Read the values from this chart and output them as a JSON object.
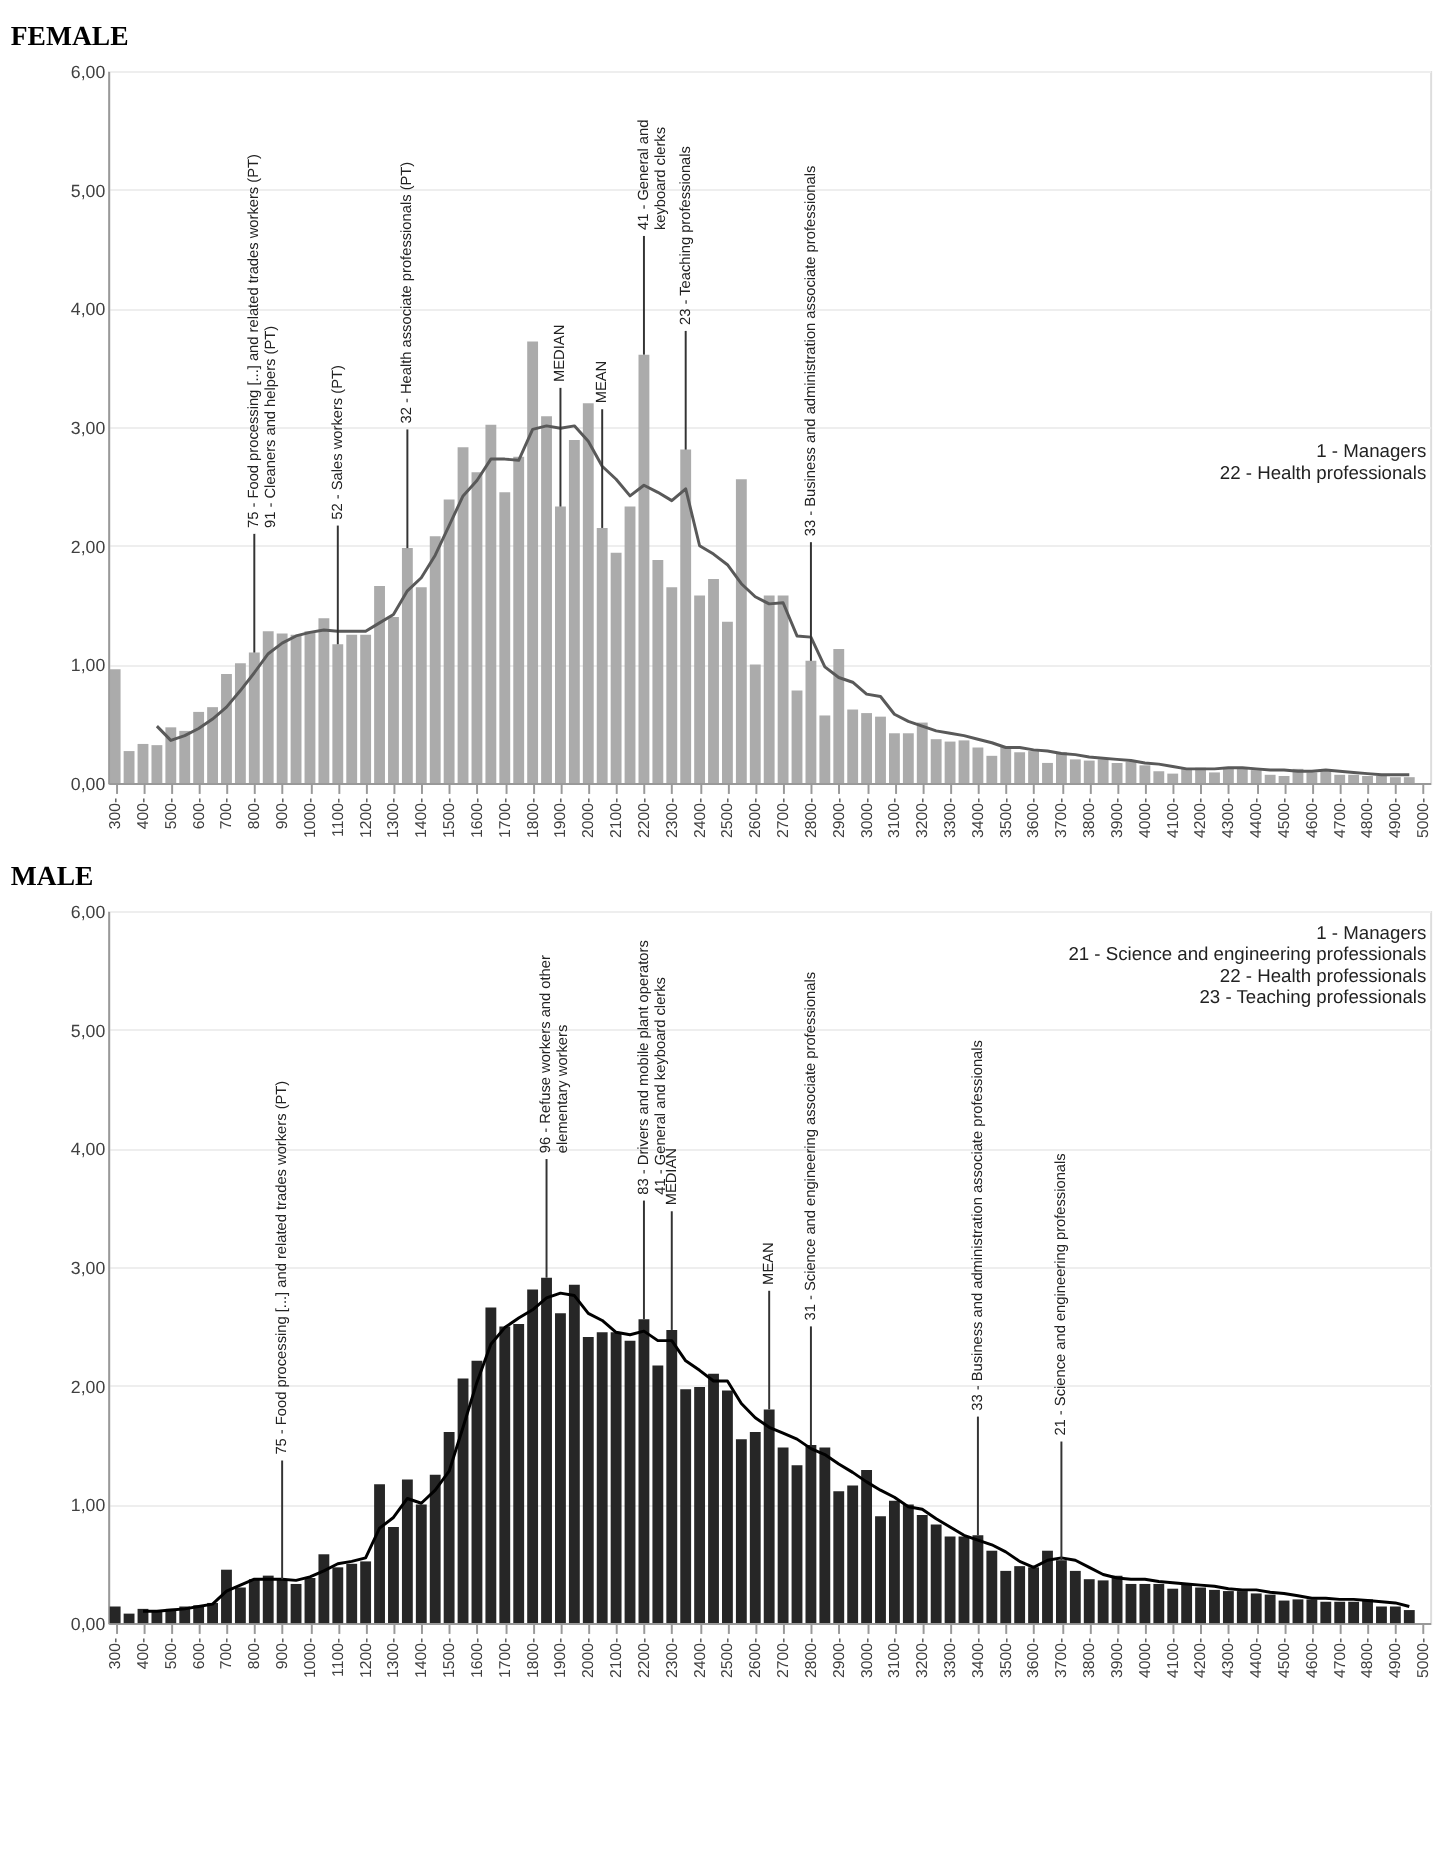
{
  "chart_data": [
    {
      "type": "bar",
      "title": "FEMALE",
      "x": [
        300,
        350,
        400,
        450,
        500,
        550,
        600,
        650,
        700,
        750,
        800,
        850,
        900,
        950,
        1000,
        1050,
        1100,
        1150,
        1200,
        1250,
        1300,
        1350,
        1400,
        1450,
        1500,
        1550,
        1600,
        1650,
        1700,
        1750,
        1800,
        1850,
        1900,
        1950,
        2000,
        2050,
        2100,
        2150,
        2200,
        2250,
        2300,
        2350,
        2400,
        2450,
        2500,
        2550,
        2600,
        2650,
        2700,
        2750,
        2800,
        2850,
        2900,
        2950,
        3000,
        3050,
        3100,
        3150,
        3200,
        3250,
        3300,
        3350,
        3400,
        3450,
        3500,
        3550,
        3600,
        3650,
        3700,
        3750,
        3800,
        3850,
        3900,
        3950,
        4000,
        4050,
        4100,
        4150,
        4200,
        4250,
        4300,
        4350,
        4400,
        4450,
        4500,
        4550,
        4600,
        4650,
        4700,
        4750,
        4800,
        4850,
        4900,
        4950
      ],
      "series": [
        {
          "color": "#a6a6a6",
          "values": [
            0.96,
            0.27,
            0.33,
            0.32,
            0.47,
            0.44,
            0.6,
            0.64,
            0.92,
            1.01,
            1.1,
            1.28,
            1.26,
            1.25,
            1.28,
            1.39,
            1.17,
            1.25,
            1.25,
            1.66,
            1.4,
            1.98,
            1.65,
            2.08,
            2.39,
            2.83,
            2.62,
            3.02,
            2.45,
            2.75,
            3.72,
            3.09,
            2.33,
            2.89,
            3.2,
            2.15,
            1.94,
            2.33,
            3.61,
            1.88,
            1.65,
            2.81,
            1.58,
            1.72,
            1.36,
            2.56,
            1.0,
            1.58,
            1.58,
            0.78,
            1.03,
            0.57,
            1.13,
            0.62,
            0.59,
            0.56,
            0.42,
            0.42,
            0.51,
            0.37,
            0.35,
            0.36,
            0.3,
            0.23,
            0.31,
            0.26,
            0.27,
            0.17,
            0.26,
            0.2,
            0.19,
            0.2,
            0.17,
            0.18,
            0.15,
            0.1,
            0.08,
            0.12,
            0.13,
            0.09,
            0.12,
            0.12,
            0.11,
            0.07,
            0.06,
            0.12,
            0.09,
            0.1,
            0.07,
            0.07,
            0.06,
            0.06,
            0.05,
            0.05
          ]
        },
        {
          "type": "line",
          "color": "#595959",
          "values": [
            null,
            null,
            null,
            0.48,
            0.36,
            0.4,
            0.46,
            0.54,
            0.64,
            0.78,
            0.93,
            1.09,
            1.18,
            1.24,
            1.27,
            1.29,
            1.28,
            1.28,
            1.28,
            1.35,
            1.42,
            1.62,
            1.73,
            1.92,
            2.17,
            2.42,
            2.55,
            2.73,
            2.73,
            2.72,
            2.98,
            3.01,
            2.99,
            3.01,
            2.88,
            2.67,
            2.56,
            2.42,
            2.51,
            2.45,
            2.38,
            2.48,
            2.0,
            1.93,
            1.84,
            1.68,
            1.57,
            1.51,
            1.52,
            1.24,
            1.23,
            0.98,
            0.89,
            0.85,
            0.75,
            0.73,
            0.58,
            0.52,
            0.48,
            0.44,
            0.42,
            0.4,
            0.37,
            0.34,
            0.3,
            0.3,
            0.28,
            0.27,
            0.25,
            0.24,
            0.22,
            0.21,
            0.2,
            0.19,
            0.17,
            0.16,
            0.14,
            0.12,
            0.12,
            0.12,
            0.13,
            0.13,
            0.12,
            0.11,
            0.11,
            0.1,
            0.1,
            0.11,
            0.1,
            0.09,
            0.08,
            0.07,
            0.07,
            0.07
          ]
        }
      ],
      "xlim": [
        275,
        5025
      ],
      "xticks": [
        {
          "value": 300,
          "label": "300-"
        },
        {
          "value": 400,
          "label": "400-"
        },
        {
          "value": 500,
          "label": "500-"
        },
        {
          "value": 600,
          "label": "600-"
        },
        {
          "value": 700,
          "label": "700-"
        },
        {
          "value": 800,
          "label": "800-"
        },
        {
          "value": 900,
          "label": "900-"
        },
        {
          "value": 1000,
          "label": "1000-"
        },
        {
          "value": 1100,
          "label": "1100-"
        },
        {
          "value": 1200,
          "label": "1200-"
        },
        {
          "value": 1300,
          "label": "1300-"
        },
        {
          "value": 1400,
          "label": "1400-"
        },
        {
          "value": 1500,
          "label": "1500-"
        },
        {
          "value": 1600,
          "label": "1600-"
        },
        {
          "value": 1700,
          "label": "1700-"
        },
        {
          "value": 1800,
          "label": "1800-"
        },
        {
          "value": 1900,
          "label": "1900-"
        },
        {
          "value": 2000,
          "label": "2000-"
        },
        {
          "value": 2100,
          "label": "2100-"
        },
        {
          "value": 2200,
          "label": "2200-"
        },
        {
          "value": 2300,
          "label": "2300-"
        },
        {
          "value": 2400,
          "label": "2400-"
        },
        {
          "value": 2500,
          "label": "2500-"
        },
        {
          "value": 2600,
          "label": "2600-"
        },
        {
          "value": 2700,
          "label": "2700-"
        },
        {
          "value": 2800,
          "label": "2800-"
        },
        {
          "value": 2900,
          "label": "2900-"
        },
        {
          "value": 3000,
          "label": "3000-"
        },
        {
          "value": 3100,
          "label": "3100-"
        },
        {
          "value": 3200,
          "label": "3200-"
        },
        {
          "value": 3300,
          "label": "3300-"
        },
        {
          "value": 3400,
          "label": "3400-"
        },
        {
          "value": 3500,
          "label": "3500-"
        },
        {
          "value": 3600,
          "label": "3600-"
        },
        {
          "value": 3700,
          "label": "3700-"
        },
        {
          "value": 3800,
          "label": "3800-"
        },
        {
          "value": 3900,
          "label": "3900-"
        },
        {
          "value": 4000,
          "label": "4000-"
        },
        {
          "value": 4100,
          "label": "4100-"
        },
        {
          "value": 4200,
          "label": "4200-"
        },
        {
          "value": 4300,
          "label": "4300-"
        },
        {
          "value": 4400,
          "label": "4400-"
        },
        {
          "value": 4500,
          "label": "4500-"
        },
        {
          "value": 4600,
          "label": "4600-"
        },
        {
          "value": 4700,
          "label": "4700-"
        },
        {
          "value": 4800,
          "label": "4800-"
        },
        {
          "value": 4900,
          "label": "4900-"
        },
        {
          "value": 5000,
          "label": "5000-"
        }
      ],
      "ylim": [
        0,
        6
      ],
      "yticks": [
        {
          "value": 0,
          "label": "0,00"
        },
        {
          "value": 1,
          "label": "1,00"
        },
        {
          "value": 2,
          "label": "2,00"
        },
        {
          "value": 3,
          "label": "3,00"
        },
        {
          "value": 4,
          "label": "4,00"
        },
        {
          "value": 5,
          "label": "5,00"
        },
        {
          "value": 6,
          "label": "6,00"
        }
      ],
      "grid": "y",
      "annotations": [
        {
          "text": "75 - Food processing [...] and related trades workers (PT)\n91 - Cleaners and helpers (PT)",
          "x": 800,
          "y": 1.1
        },
        {
          "text": "52 - Sales workers (PT)",
          "x": 1100,
          "y": 1.17
        },
        {
          "text": "32 - Health associate professionals (PT)",
          "x": 1350,
          "y": 1.98
        },
        {
          "text": "MEDIAN",
          "x": 1900,
          "y": 2.33
        },
        {
          "text": "MEAN",
          "x": 2050,
          "y": 2.15
        },
        {
          "text": "41 - General and\nkeyboard clerks",
          "x": 2200,
          "y": 3.61
        },
        {
          "text": "23 - Teaching professionals",
          "x": 2350,
          "y": 2.81
        },
        {
          "text": "33 - Business and administration associate professionals",
          "x": 2800,
          "y": 1.03
        },
        "1   - Managers\n22 - Health professionals"
      ]
    },
    {
      "type": "bar",
      "title": "MALE",
      "x": [
        300,
        350,
        400,
        450,
        500,
        550,
        600,
        650,
        700,
        750,
        800,
        850,
        900,
        950,
        1000,
        1050,
        1100,
        1150,
        1200,
        1250,
        1300,
        1350,
        1400,
        1450,
        1500,
        1550,
        1600,
        1650,
        1700,
        1750,
        1800,
        1850,
        1900,
        1950,
        2000,
        2050,
        2100,
        2150,
        2200,
        2250,
        2300,
        2350,
        2400,
        2450,
        2500,
        2550,
        2600,
        2650,
        2700,
        2750,
        2800,
        2850,
        2900,
        2950,
        3000,
        3050,
        3100,
        3150,
        3200,
        3250,
        3300,
        3350,
        3400,
        3450,
        3500,
        3550,
        3600,
        3650,
        3700,
        3750,
        3800,
        3850,
        3900,
        3950,
        4000,
        4050,
        4100,
        4150,
        4200,
        4250,
        4300,
        4350,
        4400,
        4450,
        4500,
        4550,
        4600,
        4650,
        4700,
        4750,
        4800,
        4850,
        4900,
        4950
      ],
      "series": [
        {
          "color": "#1a1a1a",
          "values": [
            0.14,
            0.08,
            0.12,
            0.1,
            0.12,
            0.14,
            0.15,
            0.17,
            0.45,
            0.3,
            0.37,
            0.4,
            0.37,
            0.33,
            0.38,
            0.58,
            0.47,
            0.5,
            0.52,
            1.17,
            0.81,
            1.21,
            1.0,
            1.25,
            1.61,
            2.06,
            2.21,
            2.66,
            2.5,
            2.52,
            2.81,
            2.91,
            2.61,
            2.85,
            2.41,
            2.45,
            2.45,
            2.38,
            2.56,
            2.17,
            2.47,
            1.97,
            1.99,
            2.1,
            1.96,
            1.55,
            1.61,
            1.8,
            1.48,
            1.33,
            1.5,
            1.48,
            1.11,
            1.16,
            1.29,
            0.9,
            1.03,
            1.0,
            0.91,
            0.83,
            0.73,
            0.73,
            0.74,
            0.61,
            0.44,
            0.48,
            0.47,
            0.61,
            0.53,
            0.44,
            0.37,
            0.36,
            0.4,
            0.33,
            0.33,
            0.33,
            0.29,
            0.33,
            0.3,
            0.28,
            0.27,
            0.27,
            0.25,
            0.24,
            0.19,
            0.2,
            0.2,
            0.18,
            0.18,
            0.18,
            0.2,
            0.14,
            0.14,
            0.11
          ]
        },
        {
          "type": "line",
          "color": "#000000",
          "values": [
            null,
            null,
            0.1,
            0.1,
            0.11,
            0.12,
            0.14,
            0.16,
            0.27,
            0.32,
            0.37,
            0.37,
            0.37,
            0.36,
            0.39,
            0.44,
            0.5,
            0.52,
            0.55,
            0.8,
            0.89,
            1.05,
            1.01,
            1.12,
            1.28,
            1.65,
            2.03,
            2.35,
            2.49,
            2.57,
            2.64,
            2.74,
            2.78,
            2.76,
            2.61,
            2.55,
            2.45,
            2.43,
            2.46,
            2.38,
            2.38,
            2.21,
            2.13,
            2.04,
            2.04,
            1.85,
            1.73,
            1.65,
            1.6,
            1.55,
            1.47,
            1.42,
            1.34,
            1.27,
            1.19,
            1.12,
            1.06,
            0.98,
            0.96,
            0.88,
            0.81,
            0.74,
            0.7,
            0.66,
            0.6,
            0.52,
            0.47,
            0.53,
            0.55,
            0.53,
            0.47,
            0.41,
            0.38,
            0.37,
            0.37,
            0.35,
            0.34,
            0.33,
            0.32,
            0.31,
            0.29,
            0.28,
            0.28,
            0.26,
            0.25,
            0.23,
            0.21,
            0.21,
            0.2,
            0.2,
            0.19,
            0.18,
            0.17,
            0.14
          ]
        }
      ],
      "xlim": [
        275,
        5025
      ],
      "xticks": [
        {
          "value": 300,
          "label": "300-"
        },
        {
          "value": 400,
          "label": "400-"
        },
        {
          "value": 500,
          "label": "500-"
        },
        {
          "value": 600,
          "label": "600-"
        },
        {
          "value": 700,
          "label": "700-"
        },
        {
          "value": 800,
          "label": "800-"
        },
        {
          "value": 900,
          "label": "900-"
        },
        {
          "value": 1000,
          "label": "1000-"
        },
        {
          "value": 1100,
          "label": "1100-"
        },
        {
          "value": 1200,
          "label": "1200-"
        },
        {
          "value": 1300,
          "label": "1300-"
        },
        {
          "value": 1400,
          "label": "1400-"
        },
        {
          "value": 1500,
          "label": "1500-"
        },
        {
          "value": 1600,
          "label": "1600-"
        },
        {
          "value": 1700,
          "label": "1700-"
        },
        {
          "value": 1800,
          "label": "1800-"
        },
        {
          "value": 1900,
          "label": "1900-"
        },
        {
          "value": 2000,
          "label": "2000-"
        },
        {
          "value": 2100,
          "label": "2100-"
        },
        {
          "value": 2200,
          "label": "2200-"
        },
        {
          "value": 2300,
          "label": "2300-"
        },
        {
          "value": 2400,
          "label": "2400-"
        },
        {
          "value": 2500,
          "label": "2500-"
        },
        {
          "value": 2600,
          "label": "2600-"
        },
        {
          "value": 2700,
          "label": "2700-"
        },
        {
          "value": 2800,
          "label": "2800-"
        },
        {
          "value": 2900,
          "label": "2900-"
        },
        {
          "value": 3000,
          "label": "3000-"
        },
        {
          "value": 3100,
          "label": "3100-"
        },
        {
          "value": 3200,
          "label": "3200-"
        },
        {
          "value": 3300,
          "label": "3300-"
        },
        {
          "value": 3400,
          "label": "3400-"
        },
        {
          "value": 3500,
          "label": "3500-"
        },
        {
          "value": 3600,
          "label": "3600-"
        },
        {
          "value": 3700,
          "label": "3700-"
        },
        {
          "value": 3800,
          "label": "3800-"
        },
        {
          "value": 3900,
          "label": "3900-"
        },
        {
          "value": 4000,
          "label": "4000-"
        },
        {
          "value": 4100,
          "label": "4100-"
        },
        {
          "value": 4200,
          "label": "4200-"
        },
        {
          "value": 4300,
          "label": "4300-"
        },
        {
          "value": 4400,
          "label": "4400-"
        },
        {
          "value": 4500,
          "label": "4500-"
        },
        {
          "value": 4600,
          "label": "4600-"
        },
        {
          "value": 4700,
          "label": "4700-"
        },
        {
          "value": 4800,
          "label": "4800-"
        },
        {
          "value": 4900,
          "label": "4900-"
        },
        {
          "value": 5000,
          "label": "5000-"
        }
      ],
      "ylim": [
        0,
        6
      ],
      "yticks": [
        {
          "value": 0,
          "label": "0,00"
        },
        {
          "value": 1,
          "label": "1,00"
        },
        {
          "value": 2,
          "label": "2,00"
        },
        {
          "value": 3,
          "label": "3,00"
        },
        {
          "value": 4,
          "label": "4,00"
        },
        {
          "value": 5,
          "label": "5,00"
        },
        {
          "value": 6,
          "label": "6,00"
        }
      ],
      "grid": "y",
      "annotations": [
        {
          "text": "75 - Food processing [...] and related trades workers (PT)",
          "x": 900,
          "y": 0.37
        },
        {
          "text": "96 - Refuse workers and other\nelementary workers",
          "x": 1850,
          "y": 2.91
        },
        {
          "text": "83 - Drivers and mobile plant operators\n41 - General and keyboard clerks",
          "x": 2200,
          "y": 2.56
        },
        {
          "text": "MEDIAN",
          "x": 2300,
          "y": 2.47
        },
        {
          "text": "MEAN",
          "x": 2650,
          "y": 1.8
        },
        {
          "text": "31 - Science and engineering associate professionals",
          "x": 2800,
          "y": 1.5
        },
        {
          "text": "33 - Business and administration associate professionals",
          "x": 3400,
          "y": 0.74
        },
        {
          "text": "21 - Science and engineering professionals",
          "x": 3700,
          "y": 0.53
        },
        "1   - Managers\n21 - Science and engineering professionals\n22 - Health professionals\n23 - Teaching professionals"
      ]
    }
  ]
}
